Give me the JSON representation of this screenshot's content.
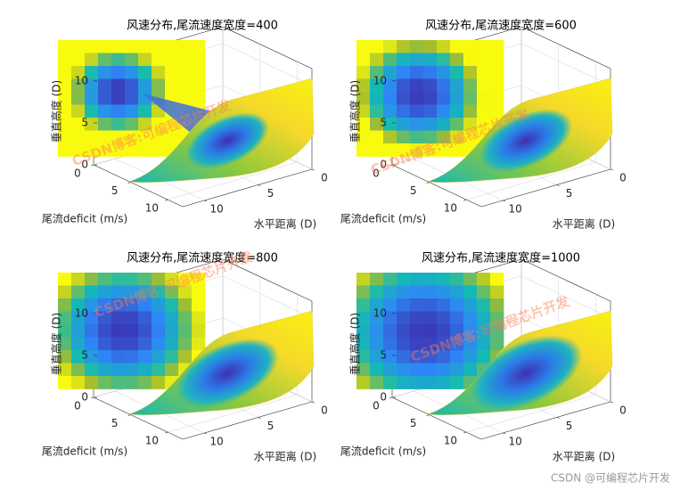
{
  "chart_data": [
    {
      "type": "surface",
      "title": "风速分布,尾流速度宽度=400",
      "xlabel": "水平距离 (D)",
      "ylabel": "尾流deficit (m/s)",
      "zlabel": "垂直高度 (D)",
      "xlim": [
        0,
        12
      ],
      "ylim": [
        0,
        12
      ],
      "zlim": [
        0,
        12
      ],
      "xticks": [
        0,
        5,
        10
      ],
      "yticks": [
        0,
        5,
        10
      ],
      "zticks": [
        0,
        5,
        10
      ],
      "grid": true
    },
    {
      "type": "surface",
      "title": "风速分布,尾流速度宽度=600",
      "xlabel": "水平距离 (D)",
      "ylabel": "尾流deficit (m/s)",
      "zlabel": "垂直高度 (D)",
      "xlim": [
        0,
        12
      ],
      "ylim": [
        0,
        12
      ],
      "zlim": [
        0,
        12
      ],
      "xticks": [
        0,
        5,
        10
      ],
      "yticks": [
        0,
        5,
        10
      ],
      "zticks": [
        0,
        5,
        10
      ],
      "grid": true
    },
    {
      "type": "surface",
      "title": "风速分布,尾流速度宽度=800",
      "xlabel": "水平距离 (D)",
      "ylabel": "尾流deficit (m/s)",
      "zlabel": "垂直高度 (D)",
      "xlim": [
        0,
        12
      ],
      "ylim": [
        0,
        12
      ],
      "zlim": [
        0,
        12
      ],
      "xticks": [
        0,
        5,
        10
      ],
      "yticks": [
        0,
        5,
        10
      ],
      "zticks": [
        0,
        5,
        10
      ],
      "grid": true
    },
    {
      "type": "surface",
      "title": "风速分布,尾流速度宽度=1000",
      "xlabel": "水平距离 (D)",
      "ylabel": "尾流deficit (m/s)",
      "zlabel": "垂直高度 (D)",
      "xlim": [
        0,
        12
      ],
      "ylim": [
        0,
        12
      ],
      "zlim": [
        0,
        12
      ],
      "xticks": [
        0,
        5,
        10
      ],
      "yticks": [
        0,
        5,
        10
      ],
      "zticks": [
        0,
        5,
        10
      ],
      "grid": true
    }
  ],
  "watermark": "CSDN博客:可编程芯片开发",
  "footer": "CSDN @可编程芯片开发"
}
